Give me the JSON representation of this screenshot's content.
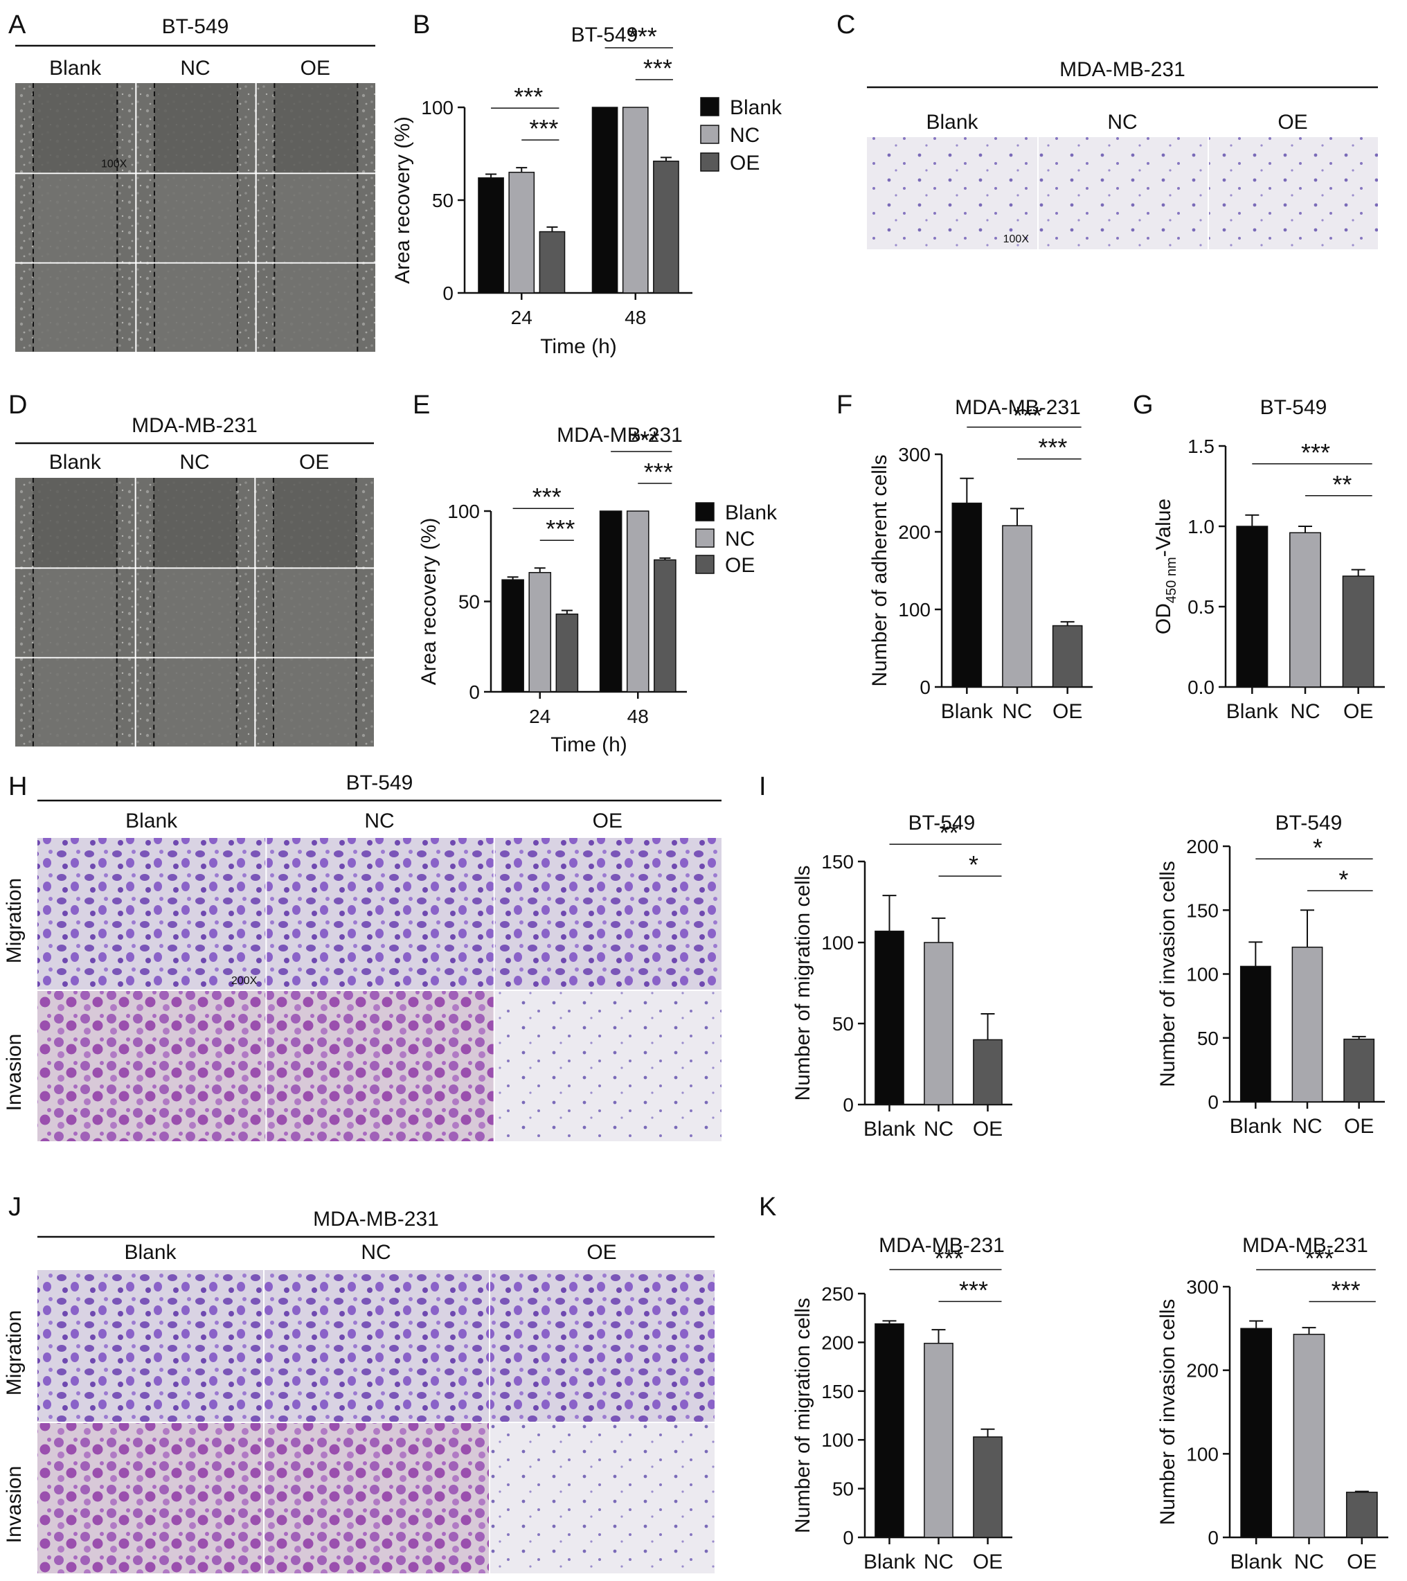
{
  "figure": {
    "panel_letters": [
      "A",
      "B",
      "C",
      "D",
      "E",
      "F",
      "G",
      "H",
      "I",
      "J",
      "K"
    ],
    "micro_magnifications": {
      "A": "100X",
      "C": "100X",
      "H": "200X"
    },
    "colors": {
      "Blank": "#0a0a0a",
      "NC": "#a8a8ad",
      "OE": "#595959"
    },
    "image_panels": {
      "A": {
        "title": "BT-549",
        "columns": [
          "Blank",
          "NC",
          "OE"
        ],
        "rows": 3,
        "assay": "scratch wound",
        "tone": "gray"
      },
      "C": {
        "title": "MDA-MB-231",
        "columns": [
          "Blank",
          "NC",
          "OE"
        ],
        "rows": 1,
        "assay": "adhesion",
        "tone": "light-violet"
      },
      "D": {
        "title": "MDA-MB-231",
        "columns": [
          "Blank",
          "NC",
          "OE"
        ],
        "rows": 3,
        "assay": "scratch wound",
        "tone": "gray"
      },
      "H": {
        "title": "BT-549",
        "columns": [
          "Blank",
          "NC",
          "OE"
        ],
        "row_labels": [
          "Migration",
          "Invasion"
        ],
        "tone": "violet"
      },
      "J": {
        "title": "MDA-MB-231",
        "columns": [
          "Blank",
          "NC",
          "OE"
        ],
        "row_labels": [
          "Migration",
          "Invasion"
        ],
        "tone": "violet"
      }
    }
  },
  "chart_data": [
    {
      "panel": "B",
      "type": "bar",
      "title": "BT-549",
      "xlabel": "Time (h)",
      "ylabel": "Area recovery (%)",
      "categories": [
        "24",
        "48"
      ],
      "ylim": [
        0,
        100
      ],
      "yticks": [
        0,
        50,
        100
      ],
      "legend": "right",
      "series": [
        {
          "name": "Blank",
          "values": [
            62,
            100
          ],
          "errors": [
            2,
            0
          ]
        },
        {
          "name": "NC",
          "values": [
            65,
            100
          ],
          "errors": [
            2.5,
            0
          ]
        },
        {
          "name": "OE",
          "values": [
            33,
            71
          ],
          "errors": [
            2.5,
            2
          ]
        }
      ],
      "significance": [
        {
          "label": "***",
          "category": "24",
          "from": "Blank",
          "to": "OE"
        },
        {
          "label": "***",
          "category": "24",
          "from": "NC",
          "to": "OE"
        },
        {
          "label": "***",
          "category": "48",
          "from": "Blank",
          "to": "OE"
        },
        {
          "label": "***",
          "category": "48",
          "from": "NC",
          "to": "OE"
        }
      ]
    },
    {
      "panel": "E",
      "type": "bar",
      "title": "MDA-MB-231",
      "xlabel": "Time (h)",
      "ylabel": "Area recovery (%)",
      "categories": [
        "24",
        "48"
      ],
      "ylim": [
        0,
        100
      ],
      "yticks": [
        0,
        50,
        100
      ],
      "legend": "right",
      "series": [
        {
          "name": "Blank",
          "values": [
            62,
            100
          ],
          "errors": [
            1.5,
            0
          ]
        },
        {
          "name": "NC",
          "values": [
            66,
            100
          ],
          "errors": [
            2.5,
            0
          ]
        },
        {
          "name": "OE",
          "values": [
            43,
            73
          ],
          "errors": [
            2,
            1
          ]
        }
      ],
      "significance": [
        {
          "label": "***",
          "category": "24",
          "from": "Blank",
          "to": "OE"
        },
        {
          "label": "***",
          "category": "24",
          "from": "NC",
          "to": "OE"
        },
        {
          "label": "***",
          "category": "48",
          "from": "Blank",
          "to": "OE"
        },
        {
          "label": "***",
          "category": "48",
          "from": "NC",
          "to": "OE"
        }
      ]
    },
    {
      "panel": "F",
      "type": "bar",
      "title": "MDA-MB-231",
      "ylabel": "Number of adherent cells",
      "categories": [
        "Blank",
        "NC",
        "OE"
      ],
      "values": [
        237,
        208,
        79
      ],
      "errors": [
        32,
        22,
        5
      ],
      "ylim": [
        0,
        300
      ],
      "yticks": [
        0,
        100,
        200,
        300
      ],
      "significance": [
        {
          "label": "***",
          "from": "Blank",
          "to": "OE"
        },
        {
          "label": "***",
          "from": "NC",
          "to": "OE"
        }
      ]
    },
    {
      "panel": "G",
      "type": "bar",
      "title": "BT-549",
      "ylabel_parts": {
        "main": "OD",
        "sub": "450 nm",
        "rest": "-Value"
      },
      "categories": [
        "Blank",
        "NC",
        "OE"
      ],
      "values": [
        1.0,
        0.96,
        0.69
      ],
      "errors": [
        0.07,
        0.04,
        0.04
      ],
      "ylim": [
        0,
        1.5
      ],
      "yticks": [
        0.0,
        0.5,
        1.0,
        1.5
      ],
      "ytick_labels": [
        "0.0",
        "0.5",
        "1.0",
        "1.5"
      ],
      "significance": [
        {
          "label": "***",
          "from": "Blank",
          "to": "OE"
        },
        {
          "label": "**",
          "from": "NC",
          "to": "OE"
        }
      ]
    },
    {
      "panel": "I",
      "type": "bar",
      "title": "BT-549",
      "ylabel": "Number of migration cells",
      "categories": [
        "Blank",
        "NC",
        "OE"
      ],
      "values": [
        107,
        100,
        40
      ],
      "errors": [
        22,
        15,
        16
      ],
      "ylim": [
        0,
        150
      ],
      "yticks": [
        0,
        50,
        100,
        150
      ],
      "significance": [
        {
          "label": "**",
          "from": "Blank",
          "to": "OE"
        },
        {
          "label": "*",
          "from": "NC",
          "to": "OE"
        }
      ]
    },
    {
      "panel": "I",
      "type": "bar",
      "title": "BT-549",
      "ylabel": "Number of invasion cells",
      "categories": [
        "Blank",
        "NC",
        "OE"
      ],
      "values": [
        106,
        121,
        49
      ],
      "errors": [
        19,
        29,
        2
      ],
      "ylim": [
        0,
        200
      ],
      "yticks": [
        0,
        50,
        100,
        150,
        200
      ],
      "significance": [
        {
          "label": "*",
          "from": "Blank",
          "to": "OE"
        },
        {
          "label": "*",
          "from": "NC",
          "to": "OE"
        }
      ]
    },
    {
      "panel": "K",
      "type": "bar",
      "title": "MDA-MB-231",
      "ylabel": "Number of migration cells",
      "categories": [
        "Blank",
        "NC",
        "OE"
      ],
      "values": [
        219,
        199,
        103
      ],
      "errors": [
        3,
        14,
        8
      ],
      "ylim": [
        0,
        250
      ],
      "yticks": [
        0,
        50,
        100,
        150,
        200,
        250
      ],
      "significance": [
        {
          "label": "***",
          "from": "Blank",
          "to": "OE"
        },
        {
          "label": "***",
          "from": "NC",
          "to": "OE"
        }
      ]
    },
    {
      "panel": "K",
      "type": "bar",
      "title": "MDA-MB-231",
      "ylabel": "Number of invasion cells",
      "categories": [
        "Blank",
        "NC",
        "OE"
      ],
      "values": [
        250,
        243,
        54
      ],
      "errors": [
        9,
        8,
        1
      ],
      "ylim": [
        0,
        300
      ],
      "yticks": [
        0,
        100,
        200,
        300
      ],
      "significance": [
        {
          "label": "***",
          "from": "Blank",
          "to": "OE"
        },
        {
          "label": "***",
          "from": "NC",
          "to": "OE"
        }
      ]
    }
  ]
}
